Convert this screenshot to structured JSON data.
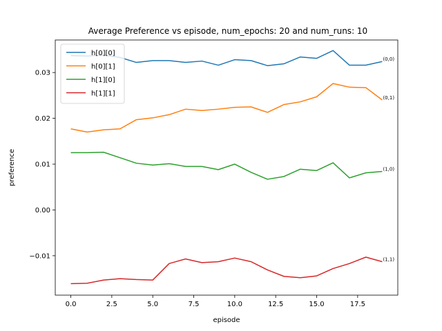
{
  "chart_data": {
    "type": "line",
    "title": "Average Preference vs episode, num_epochs: 20 and num_runs: 10",
    "xlabel": "episode",
    "ylabel": "preference",
    "xlim": [
      -0.95,
      19.95
    ],
    "ylim": [
      -0.0186,
      0.0371
    ],
    "xticks": [
      0.0,
      2.5,
      5.0,
      7.5,
      10.0,
      12.5,
      15.0,
      17.5
    ],
    "xtick_labels": [
      "0.0",
      "2.5",
      "5.0",
      "7.5",
      "10.0",
      "12.5",
      "15.0",
      "17.5"
    ],
    "yticks": [
      -0.01,
      0.0,
      0.01,
      0.02,
      0.03
    ],
    "ytick_labels": [
      "−0.01",
      "0.00",
      "0.01",
      "0.02",
      "0.03"
    ],
    "grid": false,
    "legend_position": "top-left",
    "x": [
      0,
      1,
      2,
      3,
      4,
      5,
      6,
      7,
      8,
      9,
      10,
      11,
      12,
      13,
      14,
      15,
      16,
      17,
      18,
      19
    ],
    "series": [
      {
        "name": "h[0][0]",
        "color": "#1f77b4",
        "end_label": "(0,0)",
        "values": [
          0.0337,
          0.0336,
          0.0338,
          0.0333,
          0.0322,
          0.0326,
          0.0326,
          0.0322,
          0.0325,
          0.0316,
          0.0328,
          0.0326,
          0.0315,
          0.0319,
          0.0334,
          0.0331,
          0.0348,
          0.0316,
          0.0316,
          0.0324
        ]
      },
      {
        "name": "h[0][1]",
        "color": "#ff7f0e",
        "end_label": "(0,1)",
        "values": [
          0.0177,
          0.017,
          0.0175,
          0.0177,
          0.0197,
          0.0201,
          0.0208,
          0.022,
          0.0217,
          0.022,
          0.0224,
          0.0225,
          0.0213,
          0.023,
          0.0236,
          0.0247,
          0.0276,
          0.0268,
          0.0267,
          0.024
        ]
      },
      {
        "name": "h[1][0]",
        "color": "#2ca02c",
        "end_label": "(1,0)",
        "values": [
          0.0125,
          0.0125,
          0.0126,
          0.0114,
          0.0102,
          0.0098,
          0.0101,
          0.0095,
          0.0095,
          0.0088,
          0.01,
          0.0082,
          0.0067,
          0.0073,
          0.0089,
          0.0086,
          0.0103,
          0.007,
          0.0081,
          0.0084
        ]
      },
      {
        "name": "h[1][1]",
        "color": "#d62728",
        "end_label": "(1,1)",
        "values": [
          -0.0161,
          -0.016,
          -0.0153,
          -0.015,
          -0.0152,
          -0.0153,
          -0.0117,
          -0.0107,
          -0.0115,
          -0.0113,
          -0.0105,
          -0.0113,
          -0.0131,
          -0.0145,
          -0.0148,
          -0.0144,
          -0.0128,
          -0.0117,
          -0.0103,
          -0.0113
        ]
      }
    ]
  }
}
